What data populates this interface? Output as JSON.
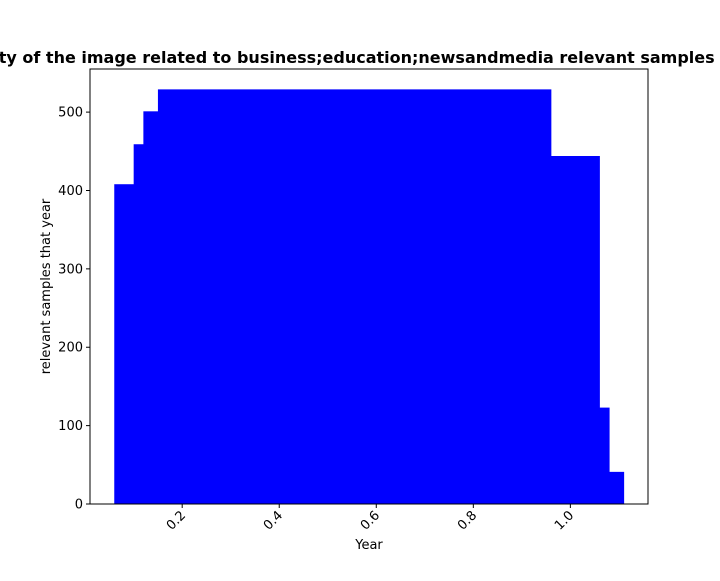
{
  "chart_data": {
    "type": "bar",
    "title": "Distribution of the quantity of the image related to business;education;newsandmedia relevant samples that year in proportion to",
    "xlabel": "Year",
    "ylabel": "relevant samples that year",
    "xlim": [
      0.01,
      1.16
    ],
    "ylim": [
      0,
      555
    ],
    "xticks": [
      0.2,
      0.4,
      0.6,
      0.8,
      1.0
    ],
    "xtick_labels": [
      "0.2",
      "0.4",
      "0.6",
      "0.8",
      "1.0"
    ],
    "yticks": [
      0,
      100,
      200,
      300,
      400,
      500
    ],
    "ytick_labels": [
      "0",
      "100",
      "200",
      "300",
      "400",
      "500"
    ],
    "bar_color": "#0000ff",
    "bins": [
      {
        "x0": 0.06,
        "x1": 0.1,
        "value": 408
      },
      {
        "x0": 0.1,
        "x1": 0.12,
        "value": 459
      },
      {
        "x0": 0.12,
        "x1": 0.15,
        "value": 501
      },
      {
        "x0": 0.15,
        "x1": 0.96,
        "value": 529
      },
      {
        "x0": 0.96,
        "x1": 1.06,
        "value": 444
      },
      {
        "x0": 1.06,
        "x1": 1.08,
        "value": 123
      },
      {
        "x0": 1.08,
        "x1": 1.11,
        "value": 41
      }
    ]
  }
}
